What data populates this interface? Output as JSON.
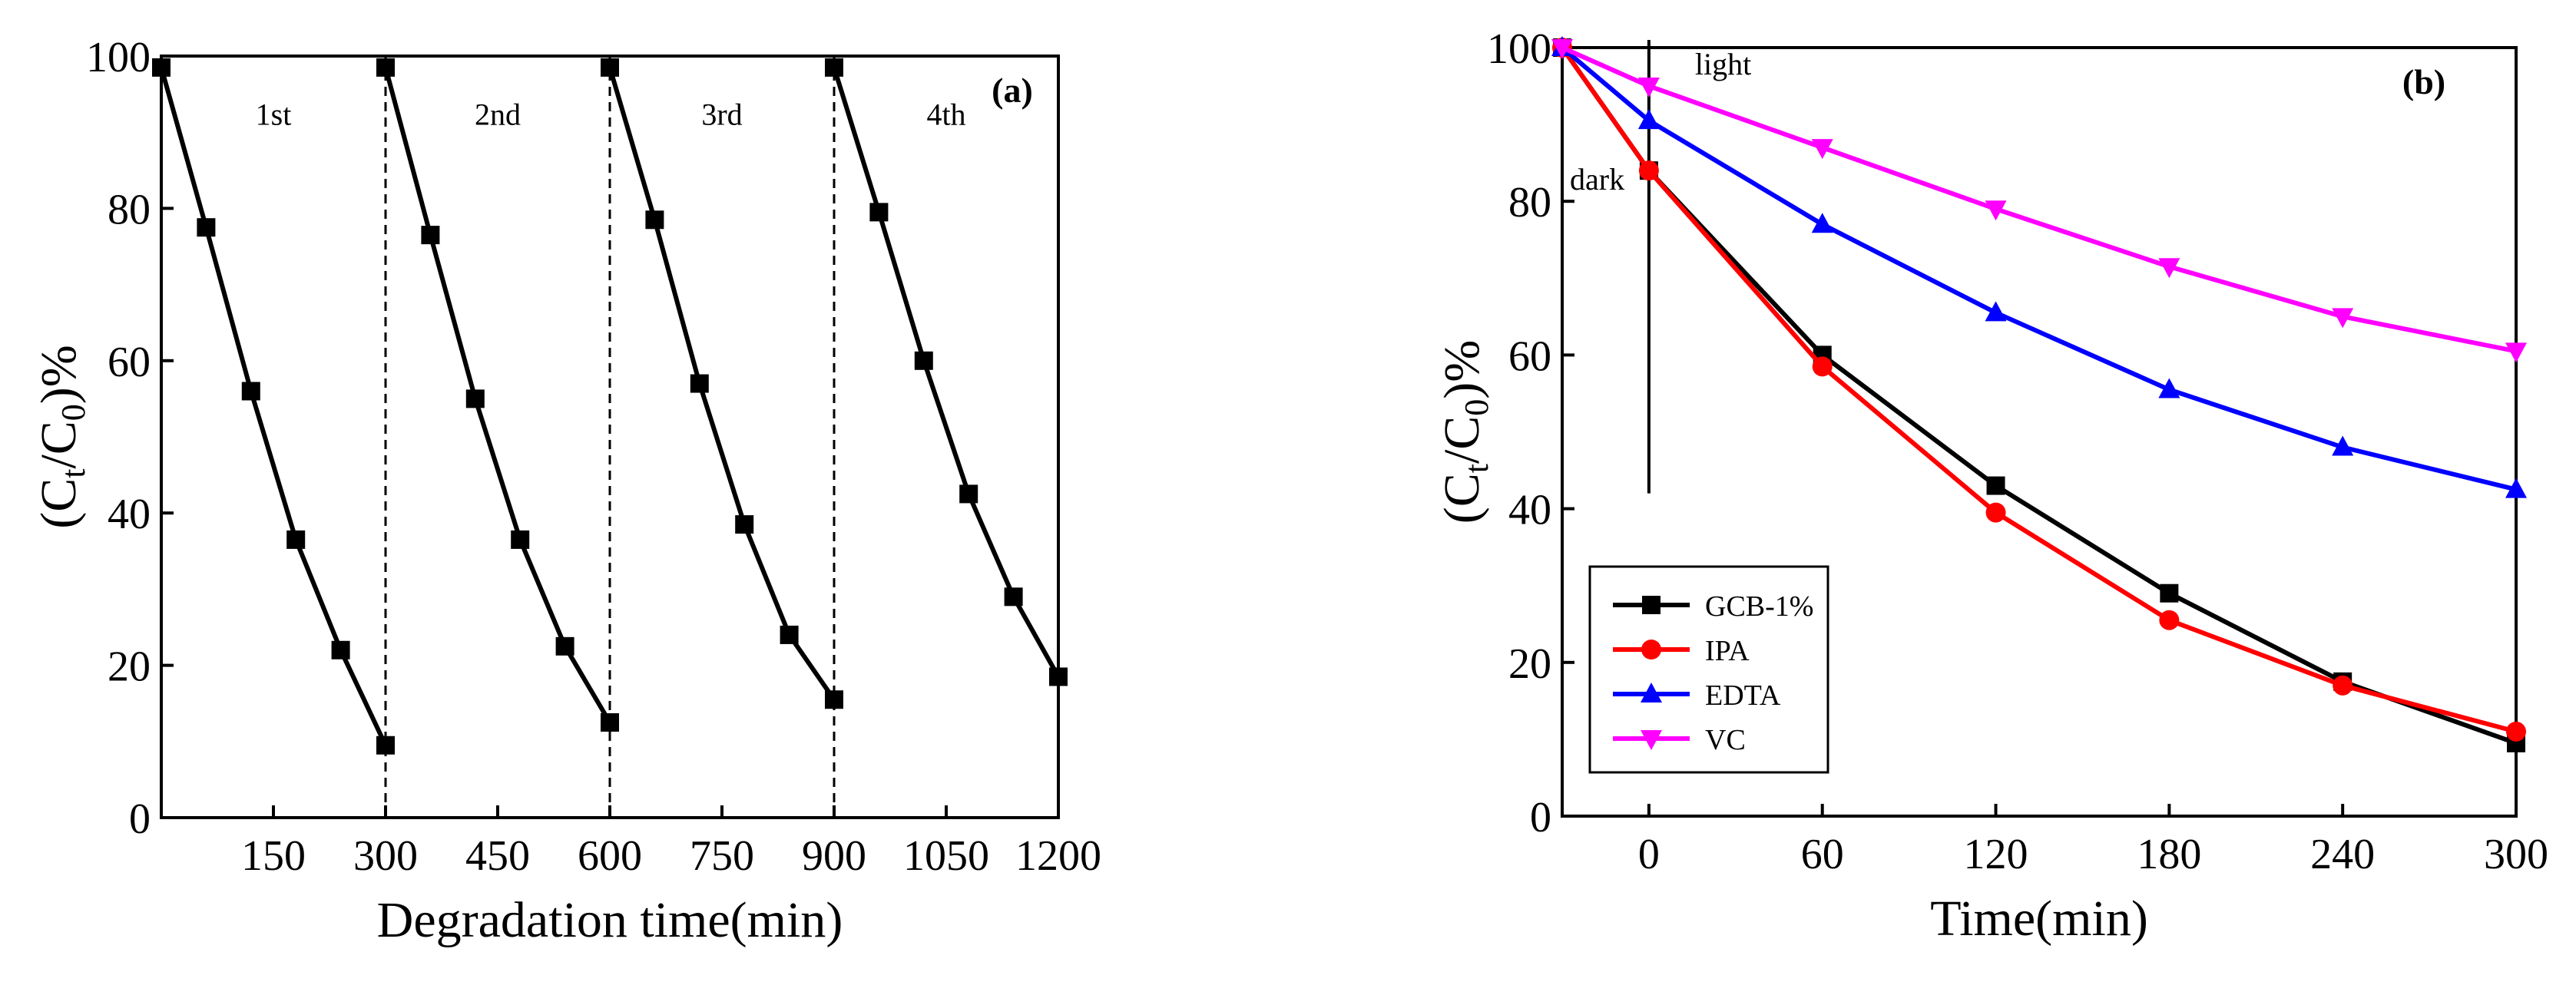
{
  "chart_data": [
    {
      "type": "line",
      "panel_label": "(a)",
      "xlabel": "Degradation time(min)",
      "ylabel_parts": {
        "pre": "(C",
        "sub1": "t",
        "mid": "/C",
        "sub2": "0",
        "post": ")%"
      },
      "xlim": [
        0,
        1200
      ],
      "ylim": [
        0,
        100
      ],
      "xticks": [
        150,
        300,
        450,
        600,
        750,
        900,
        1050,
        1200
      ],
      "yticks": [
        0,
        20,
        40,
        60,
        80,
        100
      ],
      "cycle_separators": [
        300,
        600,
        900
      ],
      "cycle_labels": [
        {
          "text": "1st",
          "x": 150,
          "y": 91
        },
        {
          "text": "2nd",
          "x": 450,
          "y": 91
        },
        {
          "text": "3rd",
          "x": 750,
          "y": 91
        },
        {
          "text": "4th",
          "x": 1050,
          "y": 91
        }
      ],
      "series": [
        {
          "name": "cycle-1",
          "x": [
            0,
            60,
            120,
            180,
            240,
            300
          ],
          "y": [
            98.5,
            77.5,
            56,
            36.5,
            22,
            9.5
          ]
        },
        {
          "name": "cycle-2",
          "x": [
            300,
            360,
            420,
            480,
            540,
            600
          ],
          "y": [
            98.5,
            76.5,
            55,
            36.5,
            22.5,
            12.5
          ]
        },
        {
          "name": "cycle-3",
          "x": [
            600,
            660,
            720,
            780,
            840,
            900
          ],
          "y": [
            98.5,
            78.5,
            57,
            38.5,
            24,
            15.5
          ]
        },
        {
          "name": "cycle-4",
          "x": [
            900,
            960,
            1020,
            1080,
            1140,
            1200
          ],
          "y": [
            98.5,
            79.5,
            60,
            42.5,
            29,
            18.5
          ]
        }
      ],
      "color": "#000000",
      "marker": "square"
    },
    {
      "type": "line",
      "panel_label": "(b)",
      "xlabel": "Time(min)",
      "ylabel_parts": {
        "pre": "(C",
        "sub1": "t",
        "mid": "/C",
        "sub2": "0",
        "post": ")%"
      },
      "xlim": [
        -30,
        300
      ],
      "ylim": [
        0,
        100
      ],
      "xticks": [
        0,
        60,
        120,
        180,
        240,
        300
      ],
      "yticks": [
        0,
        20,
        40,
        60,
        80,
        100
      ],
      "annotations": {
        "light": "light",
        "dark": "dark"
      },
      "series": [
        {
          "name": "GCB-1%",
          "color": "#000000",
          "marker": "square",
          "x": [
            -30,
            0,
            60,
            120,
            180,
            240,
            300
          ],
          "y": [
            100,
            84,
            60,
            43,
            29,
            17.5,
            9.5
          ]
        },
        {
          "name": "IPA",
          "color": "#ff0000",
          "marker": "circle",
          "x": [
            -30,
            0,
            60,
            120,
            180,
            240,
            300
          ],
          "y": [
            100,
            84,
            58.5,
            39.5,
            25.5,
            17,
            11
          ]
        },
        {
          "name": "EDTA",
          "color": "#0000ff",
          "marker": "triangle-up",
          "x": [
            -30,
            0,
            60,
            120,
            180,
            240,
            300
          ],
          "y": [
            100,
            90.5,
            77,
            65.5,
            55.5,
            48,
            42.5
          ]
        },
        {
          "name": "VC",
          "color": "#ff00ff",
          "marker": "triangle-down",
          "x": [
            -30,
            0,
            60,
            120,
            180,
            240,
            300
          ],
          "y": [
            100,
            95,
            87,
            79,
            71.5,
            65,
            60.5
          ]
        }
      ],
      "legend_position": "lower-left"
    }
  ]
}
